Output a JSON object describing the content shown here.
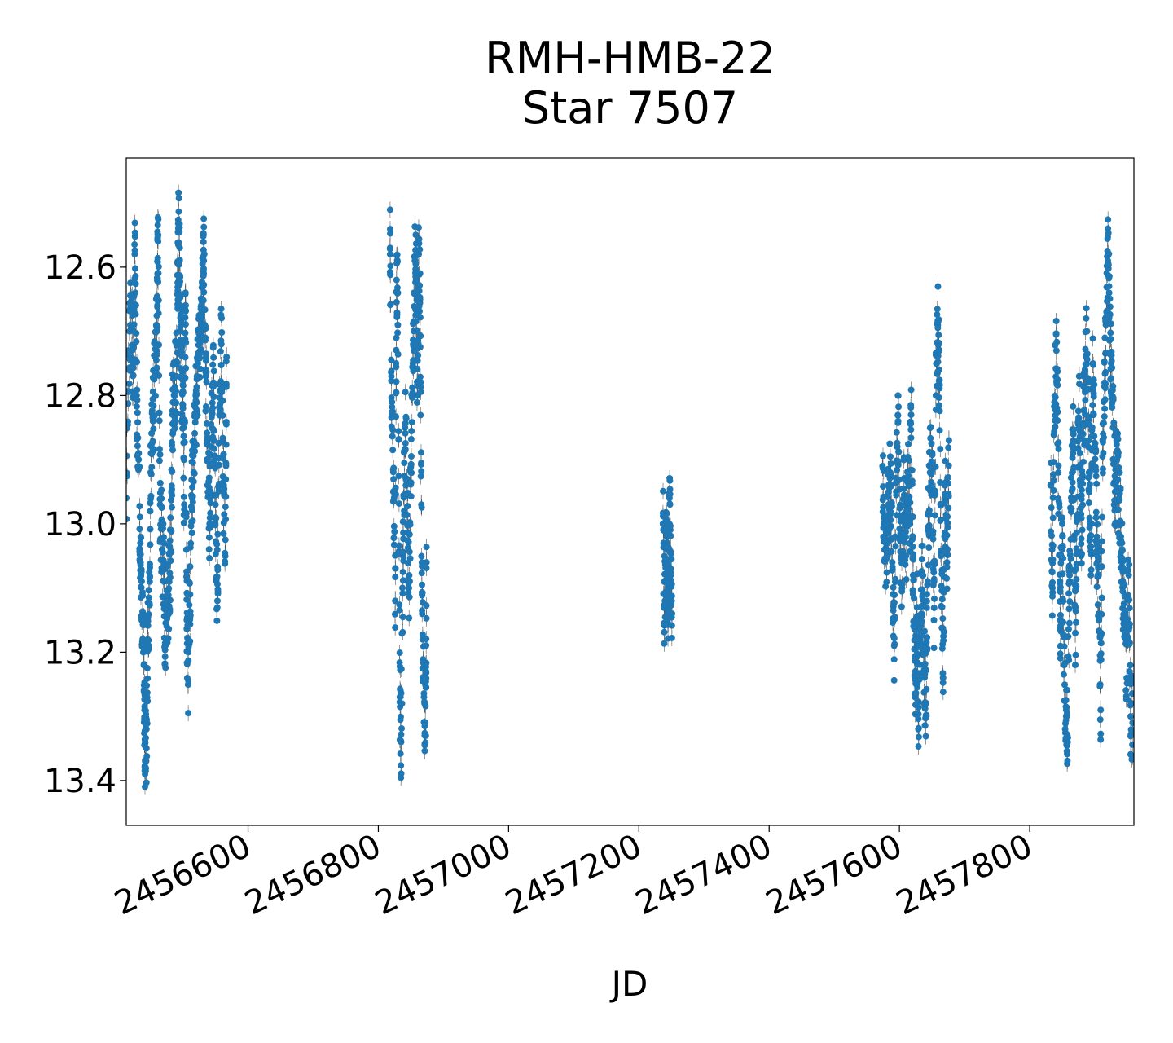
{
  "chart_data": {
    "type": "scatter",
    "title": [
      "RMH-HMB-22",
      "Star 7507"
    ],
    "xlabel": "JD",
    "ylabel": "",
    "xlim": [
      2456413,
      2457960
    ],
    "ylim": [
      13.47,
      12.43
    ],
    "y_inverted": true,
    "x_ticks": [
      2456600,
      2456800,
      2457000,
      2457200,
      2457400,
      2457600,
      2457800
    ],
    "x_tick_labels": [
      "2456600",
      "2456800",
      "2457000",
      "2457200",
      "2457400",
      "2457600",
      "2457800"
    ],
    "y_ticks": [
      12.6,
      12.8,
      13.0,
      13.2,
      13.4
    ],
    "y_tick_labels": [
      "12.6",
      "12.8",
      "13.0",
      "13.2",
      "13.4"
    ],
    "marker_color": "#1f77b4",
    "errorbar_color": "#555555",
    "grid": false,
    "series": [
      {
        "points": [
          [
            2456413,
            12.96
          ],
          [
            2456418,
            12.7
          ],
          [
            2456421,
            12.66
          ],
          [
            2456423,
            12.75
          ],
          [
            2456426,
            12.58
          ],
          [
            2456429,
            12.8
          ],
          [
            2456432,
            12.9
          ],
          [
            2456435,
            13.06
          ],
          [
            2456437,
            13.15
          ],
          [
            2456440,
            13.22
          ],
          [
            2456441,
            13.29
          ],
          [
            2456442,
            13.37
          ],
          [
            2456444,
            13.35
          ],
          [
            2456446,
            13.18
          ],
          [
            2456449,
            13.09
          ],
          [
            2456451,
            12.89
          ],
          [
            2456454,
            12.84
          ],
          [
            2456457,
            12.76
          ],
          [
            2456460,
            12.7
          ],
          [
            2456461,
            12.61
          ],
          [
            2456462,
            12.55
          ],
          [
            2456465,
            12.97
          ],
          [
            2456468,
            13.04
          ],
          [
            2456471,
            13.09
          ],
          [
            2456473,
            13.19
          ],
          [
            2456476,
            13.14
          ],
          [
            2456479,
            13.09
          ],
          [
            2456482,
            13.01
          ],
          [
            2456484,
            12.83
          ],
          [
            2456487,
            12.79
          ],
          [
            2456490,
            12.77
          ],
          [
            2456492,
            12.64
          ],
          [
            2456493,
            12.54
          ],
          [
            2456495,
            12.59
          ],
          [
            2456496,
            12.7
          ],
          [
            2456498,
            12.77
          ],
          [
            2456500,
            12.82
          ],
          [
            2456502,
            12.97
          ],
          [
            2456504,
            12.64
          ],
          [
            2456506,
            13.15
          ],
          [
            2456508,
            13.25
          ],
          [
            2456511,
            13.11
          ],
          [
            2456514,
            12.96
          ],
          [
            2456517,
            12.88
          ],
          [
            2456520,
            12.82
          ],
          [
            2456523,
            12.75
          ],
          [
            2456526,
            12.71
          ],
          [
            2456529,
            12.68
          ],
          [
            2456531,
            12.63
          ],
          [
            2456532,
            12.59
          ],
          [
            2456535,
            12.77
          ],
          [
            2456538,
            12.9
          ],
          [
            2456541,
            13.0
          ],
          [
            2456544,
            12.85
          ],
          [
            2456547,
            12.78
          ],
          [
            2456550,
            12.97
          ],
          [
            2456553,
            13.12
          ],
          [
            2456556,
            12.83
          ],
          [
            2456559,
            12.72
          ],
          [
            2456562,
            12.94
          ],
          [
            2456565,
            13.05
          ],
          [
            2456567,
            12.74
          ],
          [
            2456818,
            12.57
          ],
          [
            2456820,
            12.77
          ],
          [
            2456823,
            12.95
          ],
          [
            2456826,
            13.12
          ],
          [
            2456828,
            12.62
          ],
          [
            2456830,
            12.64
          ],
          [
            2456833,
            13.27
          ],
          [
            2456835,
            13.34
          ],
          [
            2456838,
            13.05
          ],
          [
            2456841,
            12.85
          ],
          [
            2456844,
            12.93
          ],
          [
            2456847,
            13.1
          ],
          [
            2456850,
            12.92
          ],
          [
            2456853,
            12.75
          ],
          [
            2456856,
            12.59
          ],
          [
            2456858,
            12.62
          ],
          [
            2456860,
            12.8
          ],
          [
            2456862,
            12.58
          ],
          [
            2456864,
            12.65
          ],
          [
            2456866,
            12.97
          ],
          [
            2456868,
            13.18
          ],
          [
            2456871,
            13.28
          ],
          [
            2456873,
            13.33
          ],
          [
            2456874,
            13.06
          ],
          [
            2457237,
            13.0
          ],
          [
            2457239,
            13.13
          ],
          [
            2457241,
            13.06
          ],
          [
            2457243,
            13.02
          ],
          [
            2457245,
            13.14
          ],
          [
            2457247,
            12.96
          ],
          [
            2457249,
            13.08
          ],
          [
            2457251,
            13.14
          ],
          [
            2457574,
            12.91
          ],
          [
            2457577,
            13.02
          ],
          [
            2457580,
            13.04
          ],
          [
            2457583,
            12.97
          ],
          [
            2457586,
            12.92
          ],
          [
            2457589,
            13.06
          ],
          [
            2457592,
            13.19
          ],
          [
            2457595,
            12.95
          ],
          [
            2457598,
            12.84
          ],
          [
            2457601,
            13.02
          ],
          [
            2457604,
            13.1
          ],
          [
            2457607,
            12.96
          ],
          [
            2457610,
            13.05
          ],
          [
            2457613,
            12.92
          ],
          [
            2457616,
            12.99
          ],
          [
            2457618,
            12.83
          ],
          [
            2457621,
            13.08
          ],
          [
            2457624,
            13.27
          ],
          [
            2457627,
            13.13
          ],
          [
            2457629,
            13.32
          ],
          [
            2457632,
            13.18
          ],
          [
            2457635,
            13.08
          ],
          [
            2457638,
            13.22
          ],
          [
            2457641,
            13.28
          ],
          [
            2457644,
            13.01
          ],
          [
            2457647,
            12.92
          ],
          [
            2457650,
            12.89
          ],
          [
            2457653,
            13.15
          ],
          [
            2457656,
            12.8
          ],
          [
            2457659,
            12.69
          ],
          [
            2457661,
            12.76
          ],
          [
            2457664,
            13.05
          ],
          [
            2457667,
            13.24
          ],
          [
            2457670,
            12.94
          ],
          [
            2457673,
            13.06
          ],
          [
            2457676,
            12.87
          ],
          [
            2457832,
            12.94
          ],
          [
            2457835,
            13.1
          ],
          [
            2457838,
            12.81
          ],
          [
            2457841,
            12.73
          ],
          [
            2457844,
            12.92
          ],
          [
            2457847,
            13.15
          ],
          [
            2457850,
            13.0
          ],
          [
            2457853,
            13.22
          ],
          [
            2457856,
            13.3
          ],
          [
            2457858,
            13.33
          ],
          [
            2457861,
            13.09
          ],
          [
            2457864,
            12.96
          ],
          [
            2457867,
            12.86
          ],
          [
            2457870,
            13.17
          ],
          [
            2457873,
            12.99
          ],
          [
            2457876,
            12.77
          ],
          [
            2457879,
            13.05
          ],
          [
            2457882,
            12.86
          ],
          [
            2457885,
            12.79
          ],
          [
            2457888,
            12.7
          ],
          [
            2457891,
            12.92
          ],
          [
            2457894,
            13.08
          ],
          [
            2457897,
            12.75
          ],
          [
            2457900,
            12.88
          ],
          [
            2457903,
            13.02
          ],
          [
            2457906,
            13.14
          ],
          [
            2457909,
            13.29
          ],
          [
            2457912,
            12.87
          ],
          [
            2457915,
            12.78
          ],
          [
            2457918,
            12.67
          ],
          [
            2457920,
            12.59
          ],
          [
            2457922,
            12.64
          ],
          [
            2457925,
            12.75
          ],
          [
            2457928,
            12.85
          ],
          [
            2457931,
            12.95
          ],
          [
            2457934,
            12.9
          ],
          [
            2457937,
            12.96
          ],
          [
            2457940,
            13.02
          ],
          [
            2457943,
            13.09
          ],
          [
            2457946,
            13.17
          ],
          [
            2457949,
            13.24
          ],
          [
            2457952,
            13.08
          ],
          [
            2457955,
            13.3
          ],
          [
            2457958,
            13.31
          ]
        ]
      }
    ]
  }
}
